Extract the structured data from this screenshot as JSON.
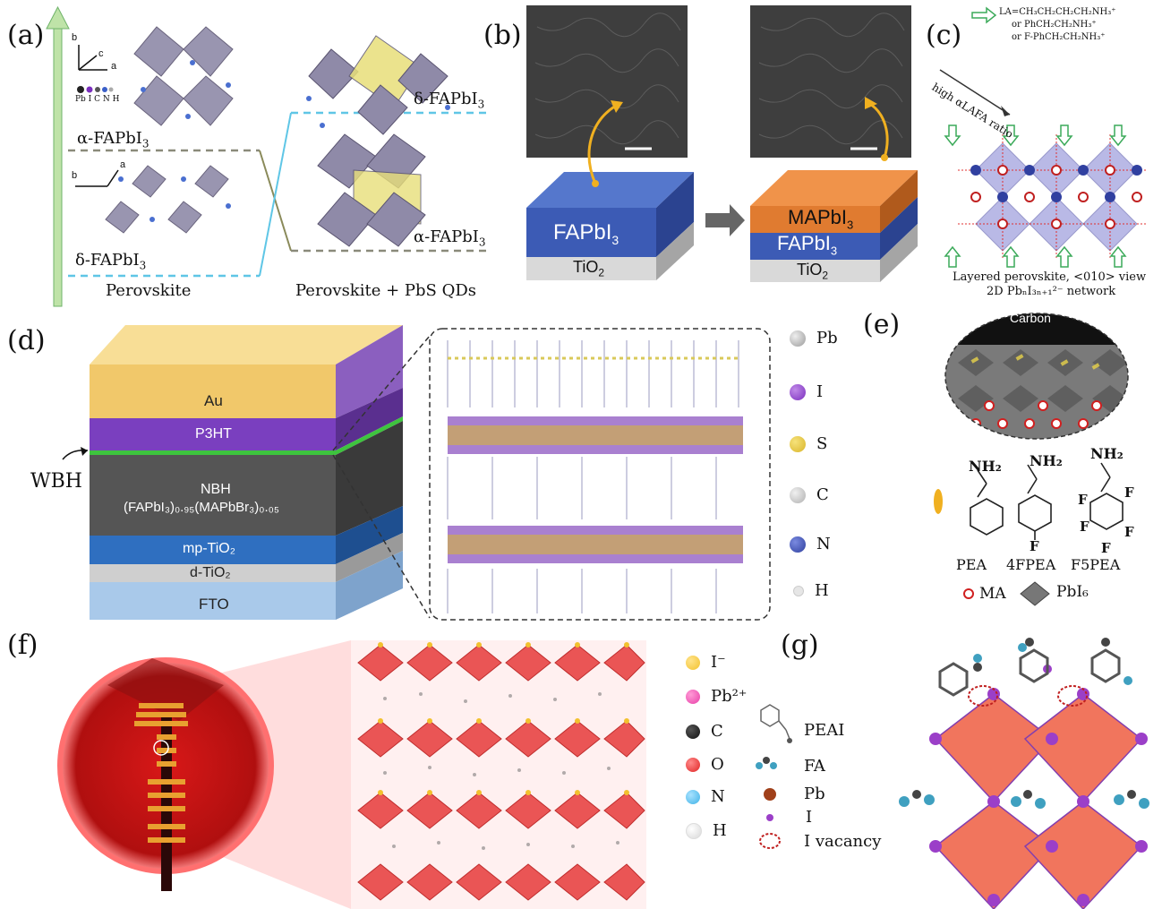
{
  "panel_labels": {
    "a": "(a)",
    "b": "(b)",
    "c": "(c)",
    "d": "(d)",
    "e": "(e)",
    "f": "(f)",
    "g": "(g)"
  },
  "panel_a": {
    "top_phase": "α-FAPbI",
    "bottom_phase": "δ-FAPbI",
    "right_top_phase": "δ-FAPbI",
    "right_bottom_phase": "α-FAPbI",
    "subscript": "3",
    "left_caption": "Perovskite",
    "right_caption": "Perovskite + PbS QDs",
    "axis_b": "b",
    "axis_c": "c",
    "axis_a": "a",
    "atom_legend": "Pb I C N H"
  },
  "panel_b": {
    "left_layer_top": "FAPbI",
    "left_layer_bottom": "TiO",
    "right_layer_top": "MAPbI",
    "right_layer_mid": "FAPbI",
    "right_layer_bottom": "TiO",
    "sub3": "3",
    "sub2": "2",
    "colors": {
      "fapbi3": "#3c5bb5",
      "mapbi3": "#e07b30",
      "tio2": "#d9d9d9",
      "sem": "#3e3e3e",
      "arrow": "#f0b020"
    }
  },
  "panel_c": {
    "la_line1": "LA=CH₃CH₂CH₂CH₂NH₃⁺",
    "la_line2": "or PhCH₂CH₂NH₃⁺",
    "la_line3": "or F-PhCH₂CH₂NH₃⁺",
    "ratio_label": "high αLAFA ratio",
    "caption_line1": "Layered perovskite, <010> view",
    "caption_line2": "2D PbₙI₃ₙ₊₁²⁻ network"
  },
  "panel_d": {
    "wbh_label": "WBH",
    "layers": [
      {
        "name": "Au",
        "color": "#f1c86a"
      },
      {
        "name": "P3HT",
        "color": "#7a3fbf"
      },
      {
        "name": "NBH",
        "color": "#5a5a5a"
      },
      {
        "name": "mp-TiO₂",
        "color": "#2f6fc0"
      },
      {
        "name": "d-TiO₂",
        "color": "#cfcfcf"
      },
      {
        "name": "FTO",
        "color": "#a9c9ea"
      }
    ],
    "nbh_formula": "(FAPbI₃)₀.₉₅(MAPbBr₃)₀.₀₅",
    "legend": [
      {
        "symbol": "Pb",
        "color": "#9a9a9a"
      },
      {
        "symbol": "I",
        "color": "#7b2fbe"
      },
      {
        "symbol": "S",
        "color": "#d9b52a"
      },
      {
        "symbol": "C",
        "color": "#b0b0b0"
      },
      {
        "symbol": "N",
        "color": "#2e3f9e"
      },
      {
        "symbol": "H",
        "color": "#f2f2f2"
      }
    ]
  },
  "panel_e": {
    "carbon_label": "Carbon",
    "nh2": "NH₂",
    "molecules": [
      "PEA",
      "4FPEA",
      "F5PEA"
    ],
    "fluorine": "F",
    "ma_label": "MA",
    "pbi6_label": "PbI₆"
  },
  "panel_f": {
    "legend": [
      {
        "symbol": "I⁻",
        "color": "#f2c12e"
      },
      {
        "symbol": "Pb²⁺",
        "color": "#e83fa8"
      },
      {
        "symbol": "C",
        "color": "#111111"
      },
      {
        "symbol": "O",
        "color": "#e02424"
      },
      {
        "symbol": "N",
        "color": "#3fb2e6"
      },
      {
        "symbol": "H",
        "color": "#e8e8e8"
      }
    ]
  },
  "panel_g": {
    "legend": [
      {
        "symbol": "PEAI"
      },
      {
        "symbol": "FA"
      },
      {
        "symbol": "Pb",
        "color": "#a0401a"
      },
      {
        "symbol": "I",
        "color": "#9b3fc8"
      },
      {
        "symbol": "I vacancy",
        "color": "#c02020"
      }
    ]
  }
}
